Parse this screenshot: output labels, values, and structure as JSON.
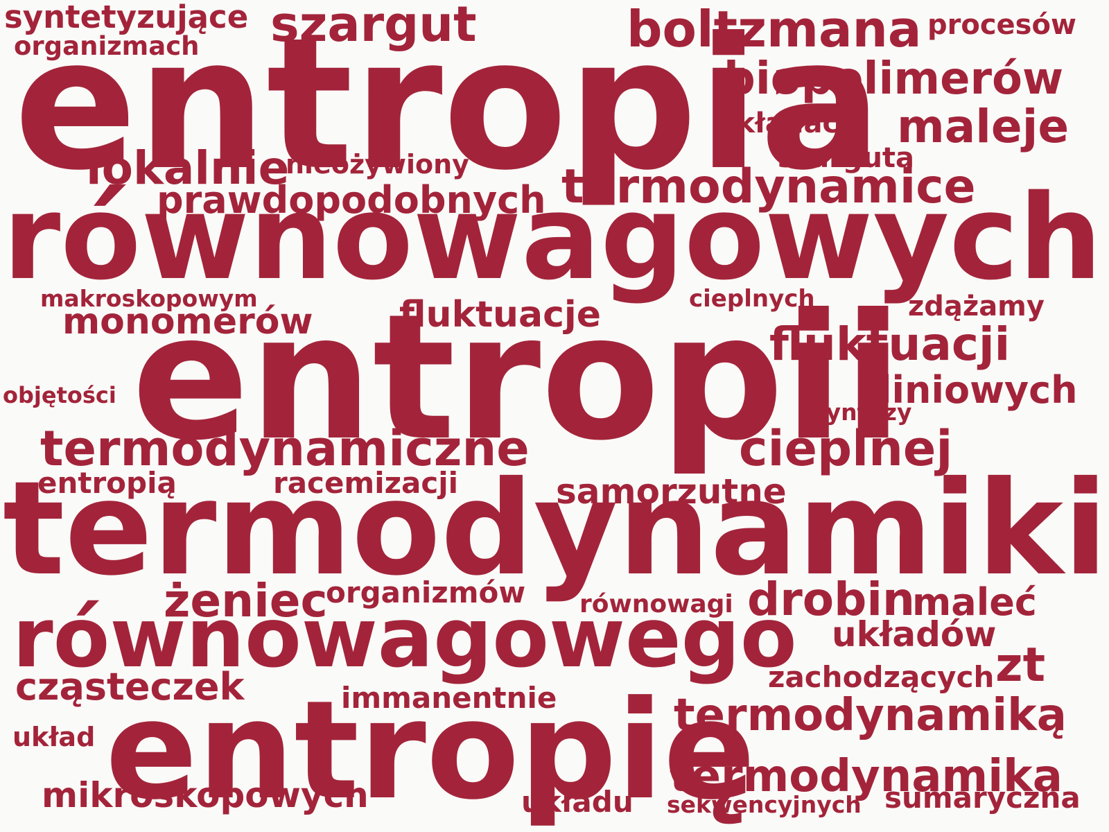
{
  "color": "#a3243a",
  "background": "#fafaf8",
  "words": [
    "entropia",
    "równowagowych",
    "entropii",
    "termodynamiki",
    "równowagowego",
    "entropię",
    "szargut",
    "boltzmana",
    "syntetyzujące",
    "organizmach",
    "procesów",
    "biopolimerów",
    "układach",
    "maleje",
    "lokalnie",
    "nieożywiony",
    "szarguta",
    "termodynamice",
    "prawdopodobnych",
    "makroskopowym",
    "monomerów",
    "fluktuacje",
    "cieplnych",
    "zdążamy",
    "fluktuacji",
    "objętości",
    "liniowych",
    "syntezy",
    "termodynamiczne",
    "cieplnej",
    "entropią",
    "racemizacji",
    "samorzutne",
    "żeniec",
    "organizmów",
    "równowagi",
    "drobin",
    "maleć",
    "układów",
    "cząsteczek",
    "zachodzących",
    "zt",
    "immanentnie",
    "termodynamiką",
    "układ",
    "termodynamika",
    "mikroskopowych",
    "układu",
    "sekwencyjnych",
    "sumaryczna"
  ]
}
